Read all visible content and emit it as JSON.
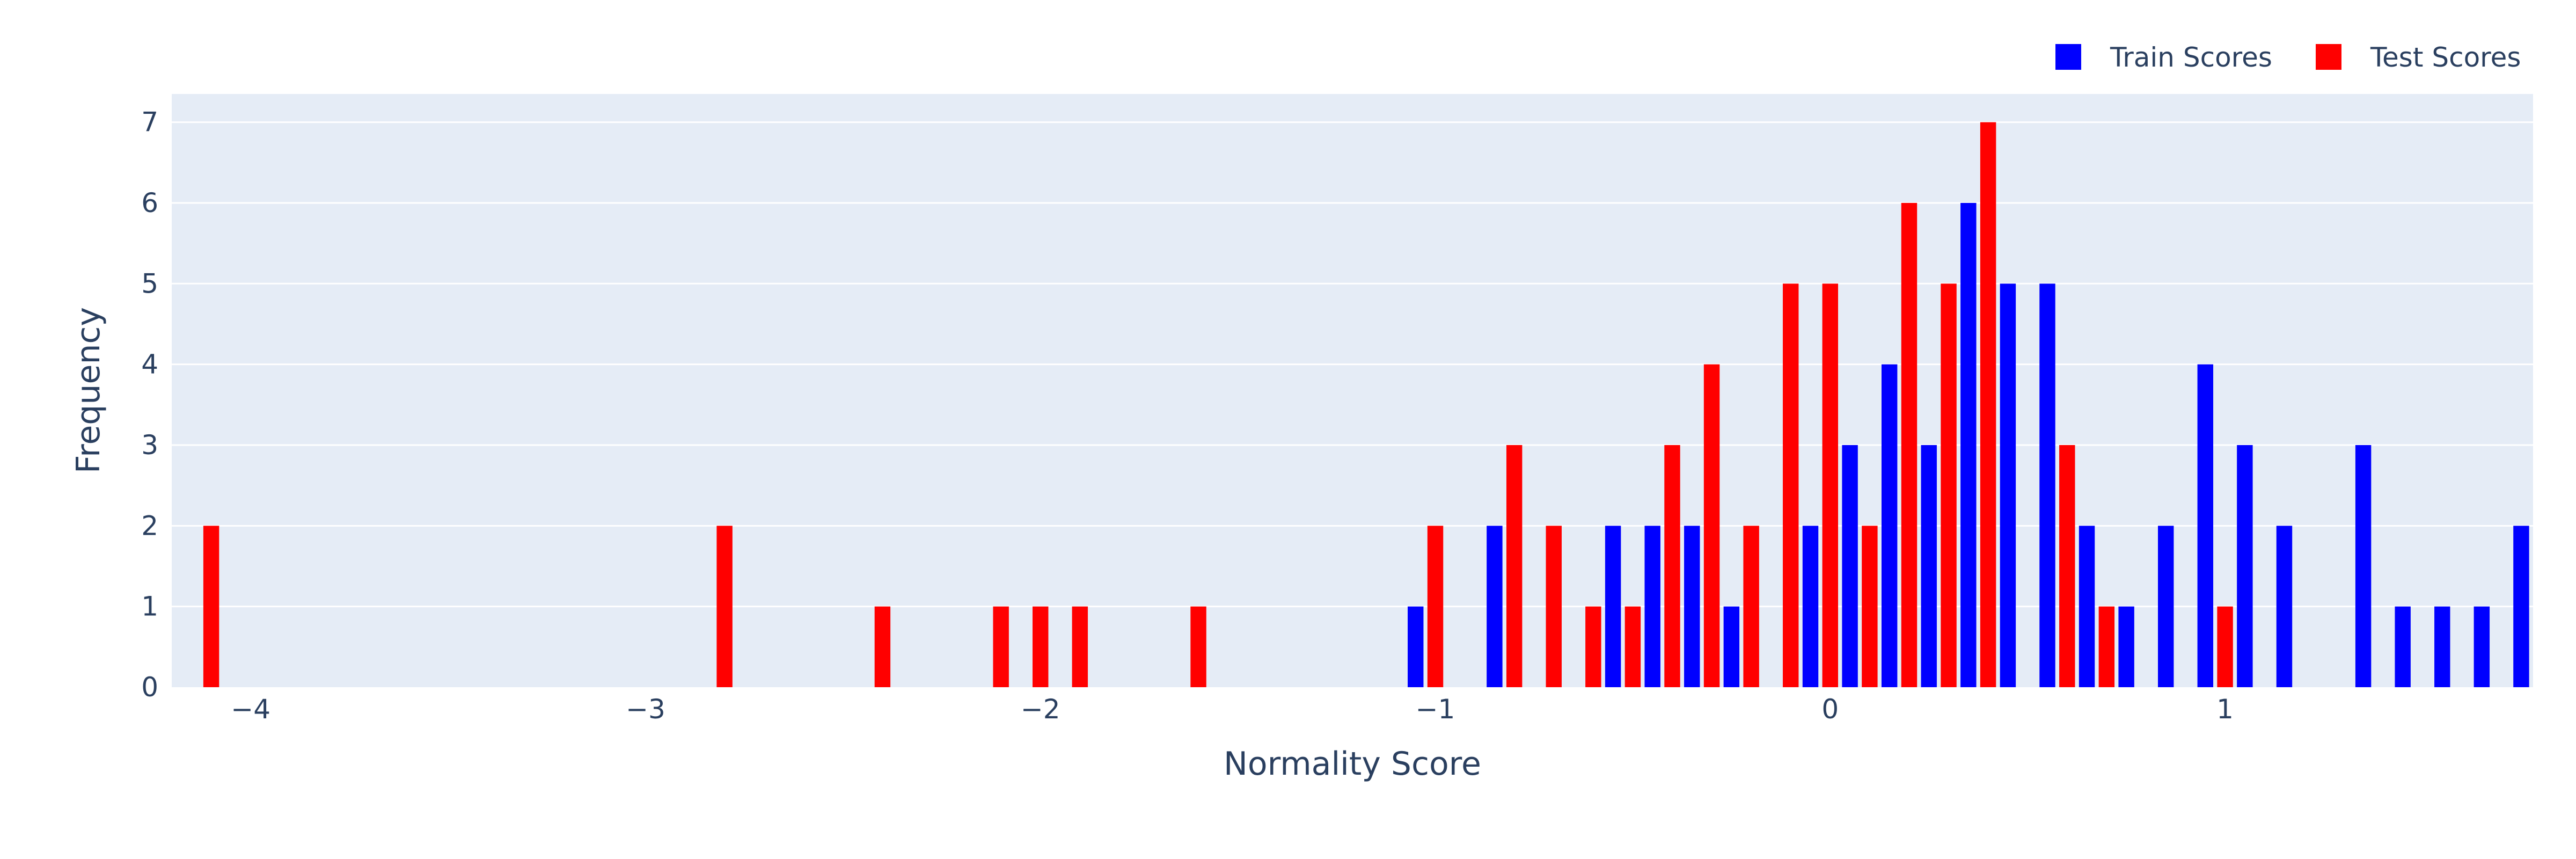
{
  "chart_data": {
    "type": "bar",
    "title": "",
    "xlabel": "Normality Score",
    "ylabel": "Frequency",
    "xlim": [
      -4.2,
      1.78
    ],
    "ylim": [
      0,
      7.35
    ],
    "x_ticks": [
      -4,
      -3,
      -2,
      -1,
      0,
      1
    ],
    "y_ticks": [
      0,
      1,
      2,
      3,
      4,
      5,
      6,
      7
    ],
    "grid": true,
    "legend_position": "top-right",
    "series": [
      {
        "name": "Train Scores",
        "color": "#0000ff",
        "x": [
          -1.05,
          -0.85,
          -0.55,
          -0.45,
          -0.35,
          -0.25,
          -0.05,
          0.05,
          0.15,
          0.25,
          0.35,
          0.45,
          0.55,
          0.65,
          0.75,
          0.85,
          0.95,
          1.05,
          1.15,
          1.35,
          1.45,
          1.55,
          1.65,
          1.75
        ],
        "values": [
          1,
          2,
          2,
          2,
          2,
          1,
          2,
          3,
          4,
          3,
          6,
          5,
          5,
          2,
          1,
          2,
          4,
          3,
          2,
          3,
          1,
          1,
          1,
          2
        ]
      },
      {
        "name": "Test Scores",
        "color": "#ff0000",
        "x": [
          -4.1,
          -2.8,
          -2.4,
          -2.1,
          -2.0,
          -1.9,
          -1.6,
          -1.0,
          -0.8,
          -0.7,
          -0.6,
          -0.5,
          -0.4,
          -0.3,
          -0.2,
          -0.1,
          0.0,
          0.1,
          0.2,
          0.3,
          0.4,
          0.6,
          0.7,
          1.0
        ],
        "values": [
          2,
          2,
          1,
          1,
          1,
          1,
          1,
          2,
          3,
          2,
          1,
          1,
          3,
          4,
          2,
          5,
          5,
          2,
          6,
          5,
          7,
          3,
          1,
          1
        ]
      }
    ],
    "colors": {
      "plot_background": "#e5ecf6",
      "grid": "#ffffff",
      "text": "#2a3f5f"
    }
  }
}
